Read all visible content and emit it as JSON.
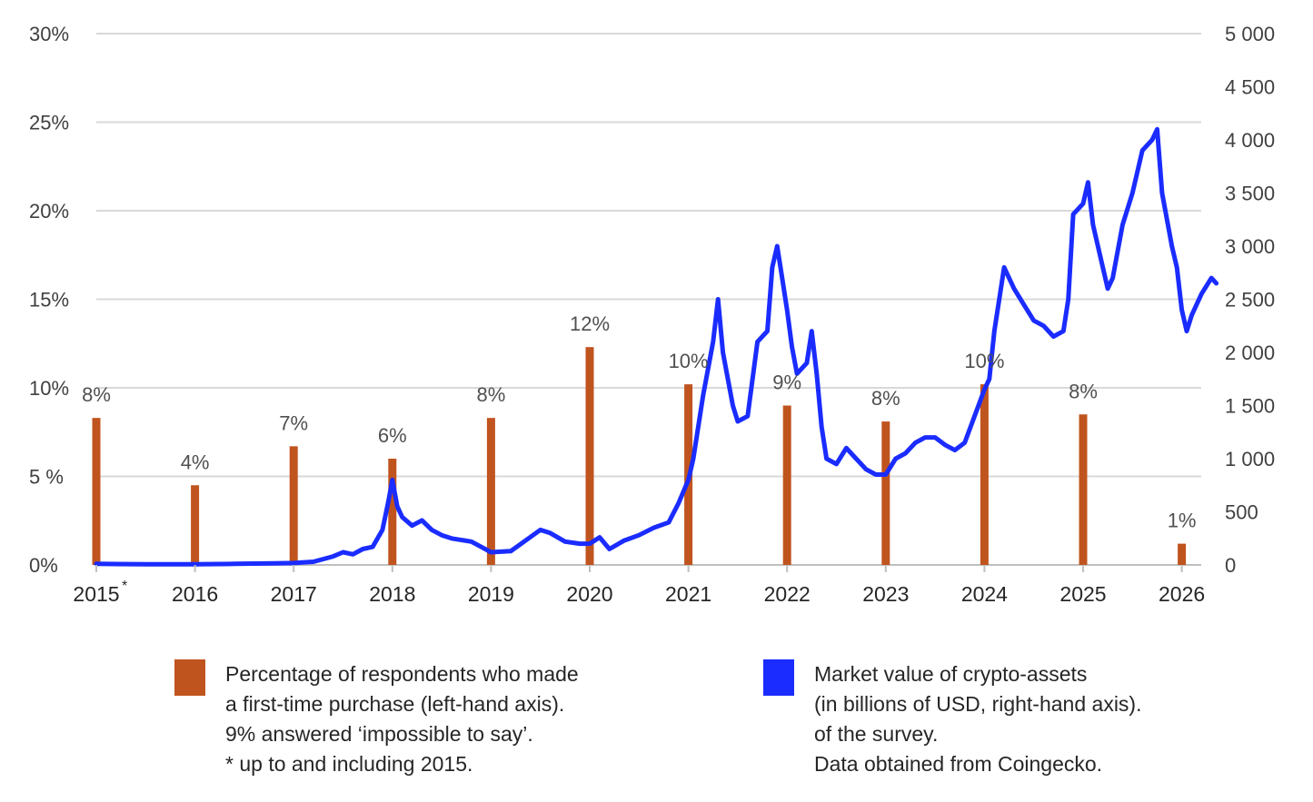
{
  "chart_data": {
    "type": "bar+line",
    "title": "",
    "left_axis": {
      "ticks": [
        "0%",
        "5 %",
        "10%",
        "15%",
        "20%",
        "25%",
        "30%"
      ],
      "ylim": [
        0,
        30
      ]
    },
    "right_axis": {
      "ticks": [
        "0",
        "500",
        "1 000",
        "1 500",
        "2 000",
        "2 500",
        "3 000",
        "3 500",
        "4 000",
        "4 500",
        "5 000"
      ],
      "ylim": [
        0,
        5000
      ]
    },
    "x_axis": {
      "ticks": [
        "2015",
        "2016",
        "2017",
        "2018",
        "2019",
        "2020",
        "2021",
        "2022",
        "2023",
        "2024",
        "2025",
        "2026"
      ],
      "tick_superscript": {
        "2015": "*"
      },
      "range": [
        2015,
        2026.35
      ]
    },
    "grid": true,
    "bars": {
      "color": "#c0541f",
      "axis": "left",
      "points": [
        {
          "x": 2015,
          "value": 8.3,
          "label": "8%"
        },
        {
          "x": 2016,
          "value": 4.5,
          "label": "4%"
        },
        {
          "x": 2017,
          "value": 6.7,
          "label": "7%"
        },
        {
          "x": 2018,
          "value": 6.0,
          "label": "6%"
        },
        {
          "x": 2019,
          "value": 8.3,
          "label": "8%"
        },
        {
          "x": 2020,
          "value": 12.3,
          "label": "12%"
        },
        {
          "x": 2021,
          "value": 10.2,
          "label": "10%"
        },
        {
          "x": 2022,
          "value": 9.0,
          "label": "9%"
        },
        {
          "x": 2023,
          "value": 8.1,
          "label": "8%"
        },
        {
          "x": 2024,
          "value": 10.2,
          "label": "10%"
        },
        {
          "x": 2025,
          "value": 8.5,
          "label": "8%"
        },
        {
          "x": 2026,
          "value": 1.2,
          "label": "1%"
        }
      ]
    },
    "line": {
      "color": "#1a2cff",
      "axis": "right",
      "points": [
        [
          2015.0,
          10
        ],
        [
          2015.5,
          7
        ],
        [
          2016.0,
          6
        ],
        [
          2016.4,
          10
        ],
        [
          2016.8,
          15
        ],
        [
          2017.0,
          18
        ],
        [
          2017.2,
          30
        ],
        [
          2017.4,
          80
        ],
        [
          2017.5,
          120
        ],
        [
          2017.6,
          100
        ],
        [
          2017.7,
          150
        ],
        [
          2017.8,
          170
        ],
        [
          2017.9,
          330
        ],
        [
          2017.96,
          600
        ],
        [
          2018.0,
          800
        ],
        [
          2018.05,
          550
        ],
        [
          2018.1,
          450
        ],
        [
          2018.2,
          370
        ],
        [
          2018.3,
          420
        ],
        [
          2018.4,
          330
        ],
        [
          2018.5,
          280
        ],
        [
          2018.6,
          250
        ],
        [
          2018.8,
          220
        ],
        [
          2018.9,
          170
        ],
        [
          2019.0,
          120
        ],
        [
          2019.2,
          130
        ],
        [
          2019.35,
          230
        ],
        [
          2019.5,
          330
        ],
        [
          2019.6,
          300
        ],
        [
          2019.75,
          220
        ],
        [
          2019.9,
          200
        ],
        [
          2020.0,
          200
        ],
        [
          2020.1,
          260
        ],
        [
          2020.2,
          150
        ],
        [
          2020.35,
          230
        ],
        [
          2020.5,
          280
        ],
        [
          2020.65,
          350
        ],
        [
          2020.8,
          400
        ],
        [
          2020.9,
          580
        ],
        [
          2021.0,
          800
        ],
        [
          2021.05,
          1000
        ],
        [
          2021.15,
          1600
        ],
        [
          2021.25,
          2100
        ],
        [
          2021.3,
          2500
        ],
        [
          2021.35,
          2000
        ],
        [
          2021.45,
          1500
        ],
        [
          2021.5,
          1350
        ],
        [
          2021.6,
          1400
        ],
        [
          2021.7,
          2100
        ],
        [
          2021.8,
          2200
        ],
        [
          2021.85,
          2800
        ],
        [
          2021.9,
          3000
        ],
        [
          2021.95,
          2700
        ],
        [
          2022.0,
          2400
        ],
        [
          2022.05,
          2050
        ],
        [
          2022.1,
          1800
        ],
        [
          2022.2,
          1900
        ],
        [
          2022.25,
          2200
        ],
        [
          2022.3,
          1800
        ],
        [
          2022.35,
          1300
        ],
        [
          2022.4,
          1000
        ],
        [
          2022.5,
          950
        ],
        [
          2022.6,
          1100
        ],
        [
          2022.7,
          1000
        ],
        [
          2022.8,
          900
        ],
        [
          2022.9,
          850
        ],
        [
          2023.0,
          850
        ],
        [
          2023.1,
          1000
        ],
        [
          2023.2,
          1050
        ],
        [
          2023.3,
          1150
        ],
        [
          2023.4,
          1200
        ],
        [
          2023.5,
          1200
        ],
        [
          2023.6,
          1130
        ],
        [
          2023.7,
          1080
        ],
        [
          2023.8,
          1150
        ],
        [
          2023.9,
          1400
        ],
        [
          2024.0,
          1650
        ],
        [
          2024.05,
          1750
        ],
        [
          2024.1,
          2200
        ],
        [
          2024.2,
          2800
        ],
        [
          2024.3,
          2600
        ],
        [
          2024.4,
          2450
        ],
        [
          2024.5,
          2300
        ],
        [
          2024.6,
          2250
        ],
        [
          2024.7,
          2150
        ],
        [
          2024.8,
          2200
        ],
        [
          2024.85,
          2500
        ],
        [
          2024.9,
          3300
        ],
        [
          2025.0,
          3400
        ],
        [
          2025.05,
          3600
        ],
        [
          2025.1,
          3200
        ],
        [
          2025.2,
          2800
        ],
        [
          2025.25,
          2600
        ],
        [
          2025.3,
          2700
        ],
        [
          2025.4,
          3200
        ],
        [
          2025.5,
          3500
        ],
        [
          2025.6,
          3900
        ],
        [
          2025.7,
          4000
        ],
        [
          2025.75,
          4100
        ],
        [
          2025.8,
          3500
        ],
        [
          2025.9,
          3000
        ],
        [
          2025.95,
          2800
        ],
        [
          2026.0,
          2400
        ],
        [
          2026.05,
          2200
        ],
        [
          2026.1,
          2350
        ],
        [
          2026.2,
          2550
        ],
        [
          2026.3,
          2700
        ],
        [
          2026.35,
          2650
        ]
      ]
    }
  },
  "legend": [
    {
      "color": "#c0541f",
      "lines": [
        "Percentage of respondents who made",
        "a first-time purchase (left-hand axis).",
        "9% answered ‘impossible to say’.",
        "* up to and including 2015."
      ]
    },
    {
      "color": "#1a2cff",
      "lines": [
        "Market value of crypto-assets",
        "(in billions of USD, right-hand axis).",
        "of the survey.",
        "Data obtained from Coingecko."
      ]
    }
  ]
}
